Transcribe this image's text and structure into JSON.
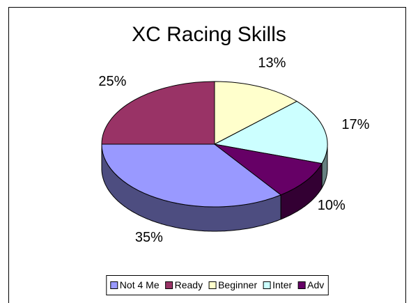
{
  "chart_data": {
    "type": "pie",
    "title": "XC Racing Skills",
    "categories": [
      "Not 4 Me",
      "Ready",
      "Beginner",
      "Inter",
      "Adv"
    ],
    "values": [
      35,
      25,
      13,
      17,
      10
    ],
    "value_labels": [
      "35%",
      "25%",
      "13%",
      "17%",
      "10%"
    ],
    "colors": [
      "#9999FF",
      "#993366",
      "#FFFFCC",
      "#CCFFFF",
      "#660066"
    ],
    "legend": "bottom"
  }
}
